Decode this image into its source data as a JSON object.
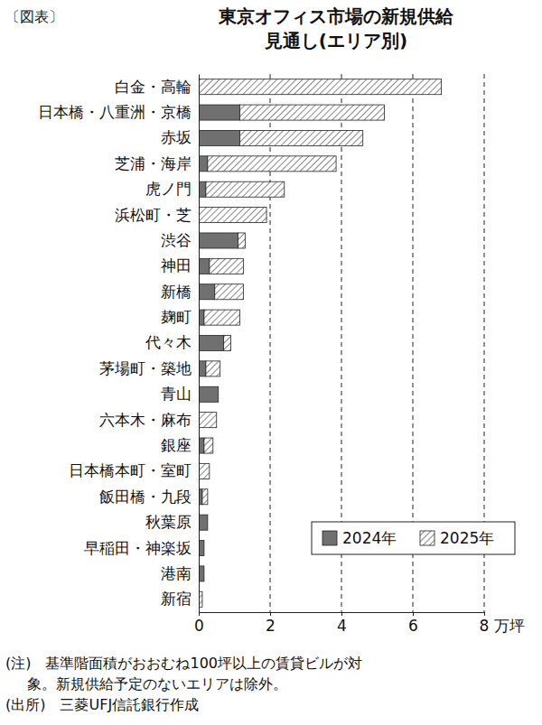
{
  "chart_data": {
    "type": "bar",
    "orientation": "horizontal",
    "stacked": true,
    "grid": true,
    "legend": "lower right",
    "figure_label": "〔図表〕",
    "title": [
      "東京オフィス市場の新規供給",
      "見通し(エリア別)"
    ],
    "categories": [
      "白金・高輪",
      "日本橋・八重洲・京橋",
      "赤坂",
      "芝浦・海岸",
      "虎ノ門",
      "浜松町・芝",
      "渋谷",
      "神田",
      "新橋",
      "麹町",
      "代々木",
      "茅場町・築地",
      "青山",
      "六本木・麻布",
      "銀座",
      "日本橋本町・室町",
      "飯田橋・九段",
      "秋葉原",
      "早稲田・神楽坂",
      "港南",
      "新宿"
    ],
    "series": [
      {
        "name": "2024年",
        "color": "#707070",
        "values": [
          0,
          1.15,
          1.15,
          0.25,
          0.2,
          0,
          1.1,
          0.3,
          0.45,
          0.15,
          0.7,
          0.2,
          0.55,
          0,
          0.15,
          0,
          0.1,
          0.25,
          0.15,
          0.15,
          0
        ]
      },
      {
        "name": "2025年",
        "color": "#222222",
        "marker": "hatch",
        "values": [
          6.8,
          4.05,
          3.45,
          3.6,
          2.2,
          1.9,
          0.2,
          0.95,
          0.8,
          1.0,
          0.2,
          0.4,
          0,
          0.5,
          0.25,
          0.3,
          0.15,
          0,
          0,
          0,
          0.1
        ]
      }
    ],
    "xlim": [
      0,
      8
    ],
    "xticks": [
      0,
      2,
      4,
      6,
      {
        "value": 8,
        "label": "8 万坪"
      }
    ],
    "notes": [
      "(注)　基準階面積がおおむね100坪以上の賃貸ビルが対",
      "象。新規供給予定のないエリアは除外。"
    ],
    "source": "(出所)　三菱UFJ信託銀行作成"
  }
}
